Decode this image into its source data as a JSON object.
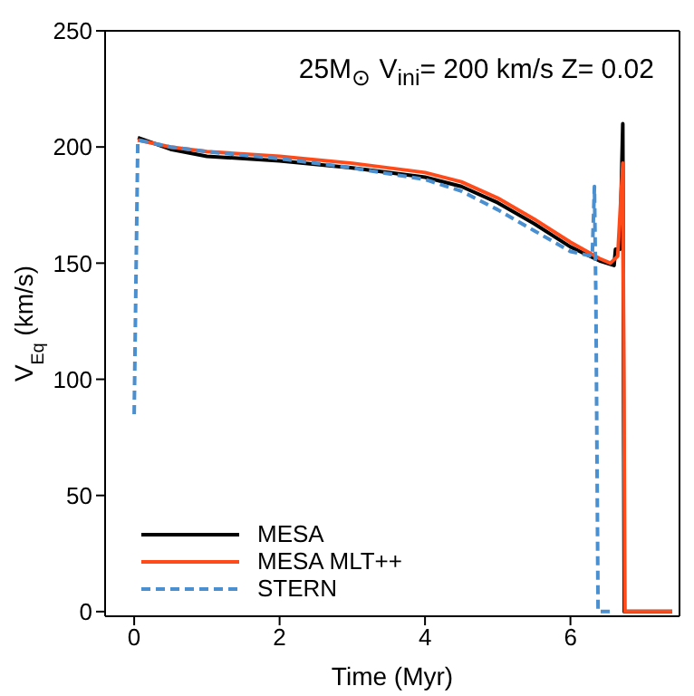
{
  "chart_data": {
    "type": "line",
    "title": "25M$_{⊙}$ V$_{ini}$= 200 km/s Z= 0.02",
    "xlabel": "Time (Myr)",
    "ylabel": "V$_{Eq}$ (km/s)",
    "xlim": [
      -0.4,
      7.5
    ],
    "xticks": [
      0,
      2,
      4,
      6
    ],
    "ylim": [
      -2,
      250
    ],
    "yticks": [
      0,
      50,
      100,
      150,
      200,
      250
    ],
    "grid": false,
    "legend": "bottom left",
    "marker": "none",
    "series": [
      {
        "name": "MESA",
        "color": "#000000",
        "line_style": "solid",
        "x": [
          0.05,
          0.5,
          1,
          2,
          3,
          4,
          4.5,
          5,
          5.5,
          6,
          6.4,
          6.6,
          6.62,
          6.68,
          6.72,
          6.74,
          7.4
        ],
        "values": [
          204,
          199,
          196,
          194,
          191,
          187,
          183,
          176,
          167,
          157,
          151,
          149,
          156,
          156,
          210,
          0,
          0
        ]
      },
      {
        "name": "MESA MLT++",
        "color": "#ff4b1a",
        "line_style": "solid",
        "x": [
          0.05,
          0.5,
          1,
          2,
          3,
          4,
          4.5,
          5,
          5.5,
          6,
          6.4,
          6.55,
          6.65,
          6.72,
          6.75,
          7.4
        ],
        "values": [
          203,
          200,
          198,
          196,
          193,
          189,
          185,
          178,
          169,
          159,
          152,
          150,
          153,
          193,
          0,
          0
        ]
      },
      {
        "name": "STERN",
        "color": "#4a8fd0",
        "line_style": "dashed",
        "x": [
          0,
          0.05,
          0.5,
          1,
          2,
          3,
          4,
          4.5,
          5,
          5.5,
          6,
          6.3,
          6.33,
          6.35,
          6.38,
          6.6
        ],
        "values": [
          85,
          203,
          200,
          198,
          195,
          191,
          186,
          181,
          173,
          164,
          155,
          153,
          183,
          135,
          0,
          0
        ]
      }
    ]
  }
}
